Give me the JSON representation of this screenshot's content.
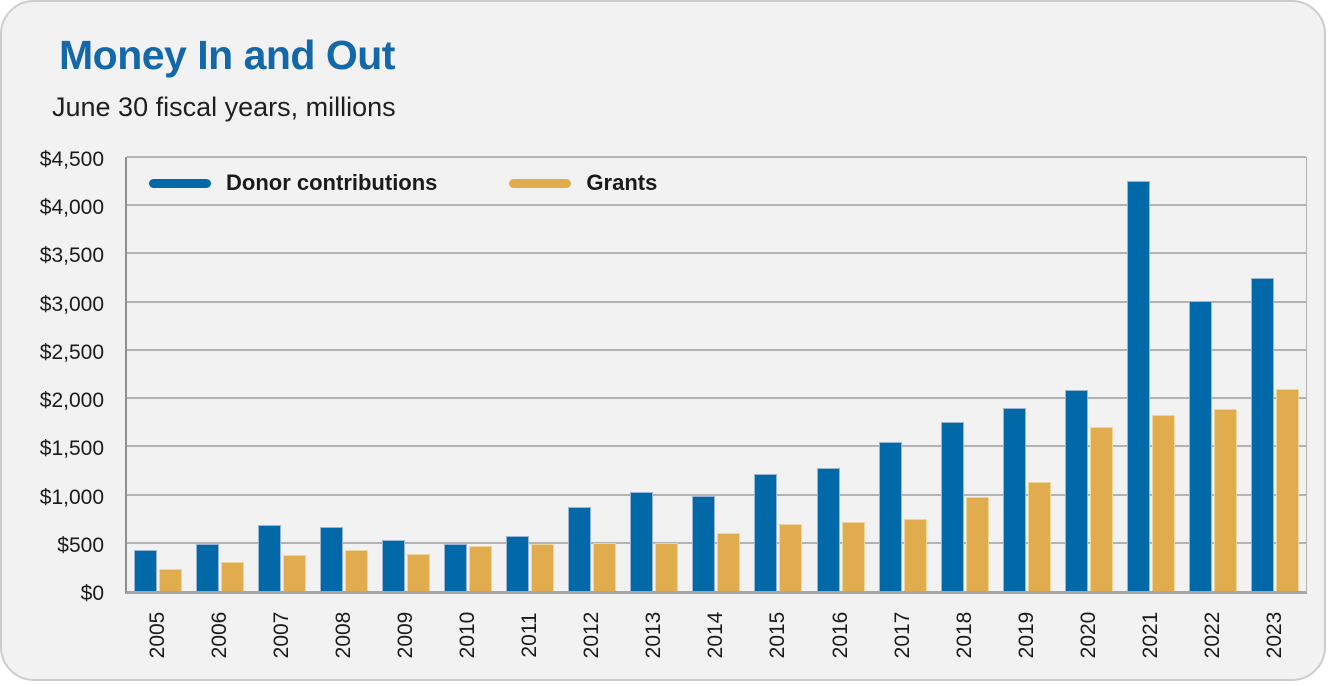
{
  "card": {
    "title": "Money In and Out",
    "subtitle": "June 30 fiscal years, millions"
  },
  "colors": {
    "title_blue": "#1268A8",
    "donor_bar": "#0269A8",
    "donor_bar_stroke": "#9BB5D6",
    "grants_bar": "#E0AC4E",
    "grants_bar_stroke": "#EDD79E",
    "card_background": "#F2F2F2",
    "gridline": "#B3B3B3",
    "axis_line": "#A6A6A6",
    "text": "#1A1A1A"
  },
  "legend": {
    "items": [
      {
        "label": "Donor contributions",
        "color": "#0269A8"
      },
      {
        "label": "Grants",
        "color": "#E0AC4E"
      }
    ]
  },
  "chart_data": {
    "type": "bar",
    "title": "Money In and Out",
    "subtitle": "June 30 fiscal years, millions",
    "categories": [
      "2005",
      "2006",
      "2007",
      "2008",
      "2009",
      "2010",
      "2011",
      "2012",
      "2013",
      "2014",
      "2015",
      "2016",
      "2017",
      "2018",
      "2019",
      "2020",
      "2021",
      "2022",
      "2023"
    ],
    "series": [
      {
        "name": "Donor contributions",
        "color": "#0269A8",
        "values": [
          430,
          485,
          685,
          665,
          530,
          485,
          575,
          870,
          1030,
          985,
          1210,
          1275,
          1540,
          1755,
          1895,
          2080,
          4250,
          3005,
          3245
        ]
      },
      {
        "name": "Grants",
        "color": "#E0AC4E",
        "values": [
          225,
          300,
          370,
          430,
          385,
          465,
          485,
          495,
          500,
          600,
          695,
          715,
          750,
          980,
          1130,
          1700,
          1830,
          1885,
          2090
        ]
      }
    ],
    "xlabel": "",
    "ylabel": "",
    "ylim": [
      0,
      4500
    ],
    "ytick_interval": 500,
    "ytick_labels": [
      "$0",
      "$500",
      "$1,000",
      "$1,500",
      "$2,000",
      "$2,500",
      "$3,000",
      "$3,500",
      "$4,000",
      "$4,500"
    ],
    "grid": true,
    "legend_position": "top-left-inside",
    "x_tick_rotation": -90
  }
}
